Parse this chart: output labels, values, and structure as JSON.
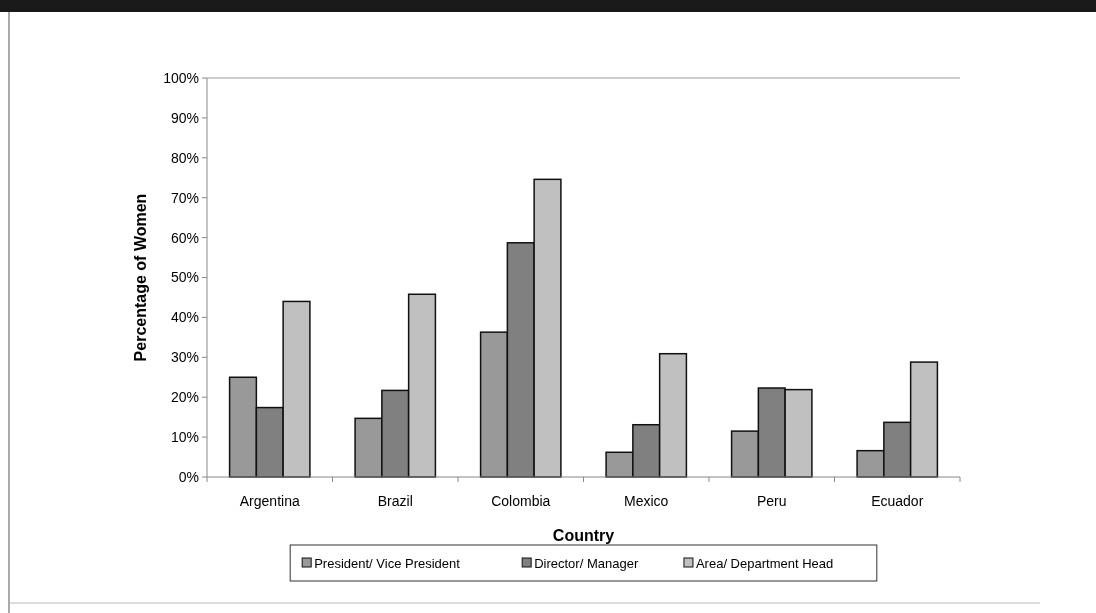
{
  "chart_data": {
    "type": "bar",
    "xlabel": "Country",
    "ylabel": "Percentage of Women",
    "categories": [
      "Argentina",
      "Brazil",
      "Colombia",
      "Mexico",
      "Peru",
      "Ecuador"
    ],
    "series": [
      {
        "name": "President/ Vice President",
        "color": "#999999",
        "values": [
          25,
          14.7,
          36.3,
          6.2,
          11.5,
          6.6
        ]
      },
      {
        "name": "Director/ Manager",
        "color": "#808080",
        "values": [
          17.4,
          21.7,
          58.7,
          13.1,
          22.3,
          13.7
        ]
      },
      {
        "name": "Area/ Department Head",
        "color": "#c0c0c0",
        "values": [
          44,
          45.8,
          74.6,
          30.9,
          21.9,
          28.8
        ]
      }
    ],
    "ylim": [
      0,
      100
    ],
    "yticks": [
      {
        "value": 0,
        "label": "0%"
      },
      {
        "value": 10,
        "label": "10%"
      },
      {
        "value": 20,
        "label": "20%"
      },
      {
        "value": 30,
        "label": "30%"
      },
      {
        "value": 40,
        "label": "40%"
      },
      {
        "value": 50,
        "label": "50%"
      },
      {
        "value": 60,
        "label": "60%"
      },
      {
        "value": 70,
        "label": "70%"
      },
      {
        "value": 80,
        "label": "80%"
      },
      {
        "value": 90,
        "label": "90%"
      },
      {
        "value": 100,
        "label": "100%"
      }
    ],
    "grid": false,
    "legend": "bottom"
  }
}
